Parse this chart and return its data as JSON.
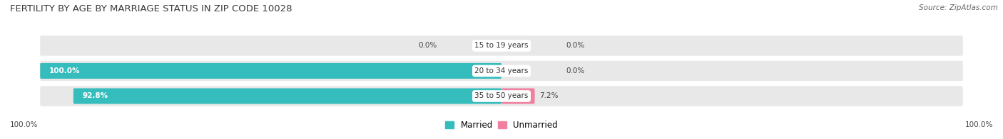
{
  "title": "FERTILITY BY AGE BY MARRIAGE STATUS IN ZIP CODE 10028",
  "source": "Source: ZipAtlas.com",
  "categories": [
    "15 to 19 years",
    "20 to 34 years",
    "35 to 50 years"
  ],
  "married_values": [
    0.0,
    100.0,
    92.8
  ],
  "unmarried_values": [
    0.0,
    0.0,
    7.2
  ],
  "married_color": "#35BCBC",
  "unmarried_color": "#F080A0",
  "bar_bg_color": "#E8E8E8",
  "married_label": "Married",
  "unmarried_label": "Unmarried",
  "bottom_left_label": "100.0%",
  "bottom_right_label": "100.0%",
  "title_fontsize": 9.5,
  "source_fontsize": 7.5,
  "label_fontsize": 7.5,
  "bar_height": 0.62,
  "fig_bg_color": "#FFFFFF",
  "row_bg_color": "#F2F2F2"
}
